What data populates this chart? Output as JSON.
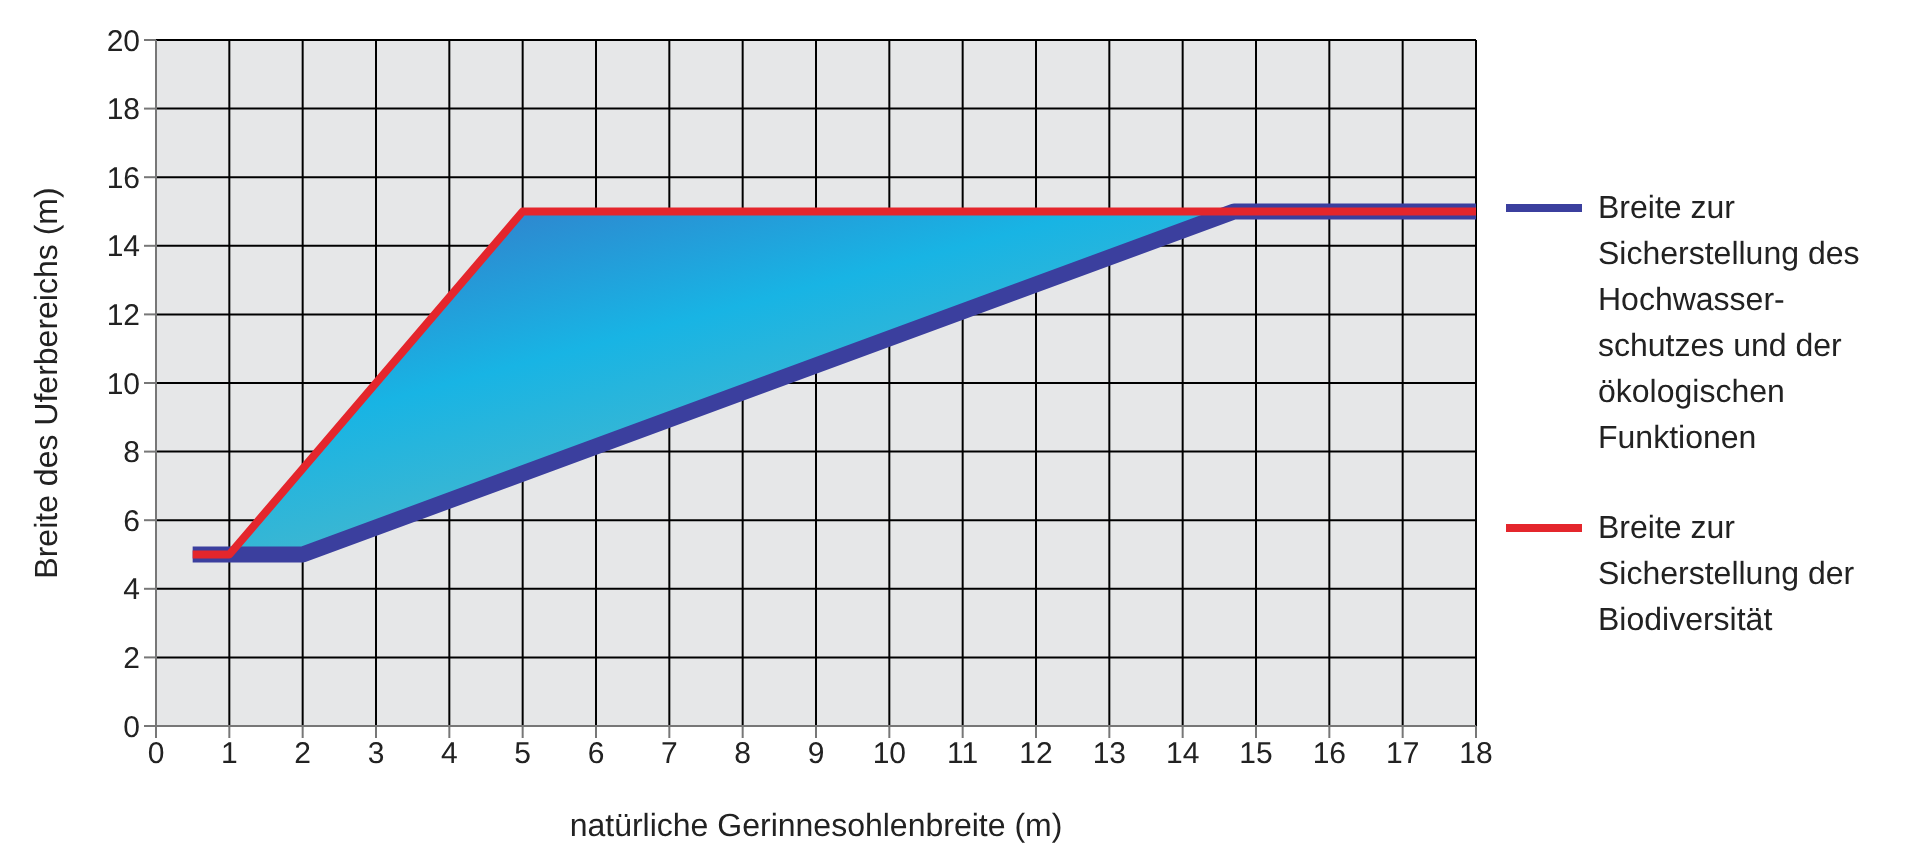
{
  "chart_data": {
    "type": "line",
    "xlabel": "natürliche Gerinnesohlenbreite (m)",
    "ylabel": "Breite des Uferbereichs (m)",
    "xlim": [
      0,
      18
    ],
    "xticks": [
      0,
      1,
      2,
      3,
      4,
      5,
      6,
      7,
      8,
      9,
      10,
      11,
      12,
      13,
      14,
      15,
      16,
      17,
      18
    ],
    "ylim": [
      0,
      20
    ],
    "yticks": [
      0,
      2,
      4,
      6,
      8,
      10,
      12,
      14,
      16,
      18,
      20
    ],
    "grid": true,
    "legend": "right",
    "marker": "none",
    "line_style": "solid",
    "series": [
      {
        "name": "Breite zur Sicherstellung des Hochwasser-schutzes und der ökologischen Funktionen",
        "color": "#3b3f9e",
        "x": [
          0.5,
          1,
          2,
          14.7,
          18
        ],
        "values": [
          5,
          5,
          5,
          15,
          15
        ]
      },
      {
        "name": "Breite zur Sicherstellung der Biodiversität",
        "color": "#e4262c",
        "x": [
          0.5,
          1,
          2,
          5,
          14.7,
          18
        ],
        "values": [
          5,
          5,
          7.5,
          15,
          15,
          15
        ],
        "lower": [
          5,
          5,
          5,
          7.4,
          15,
          15
        ],
        "upper": [
          5,
          5,
          7.5,
          15,
          15,
          15
        ]
      }
    ]
  }
}
